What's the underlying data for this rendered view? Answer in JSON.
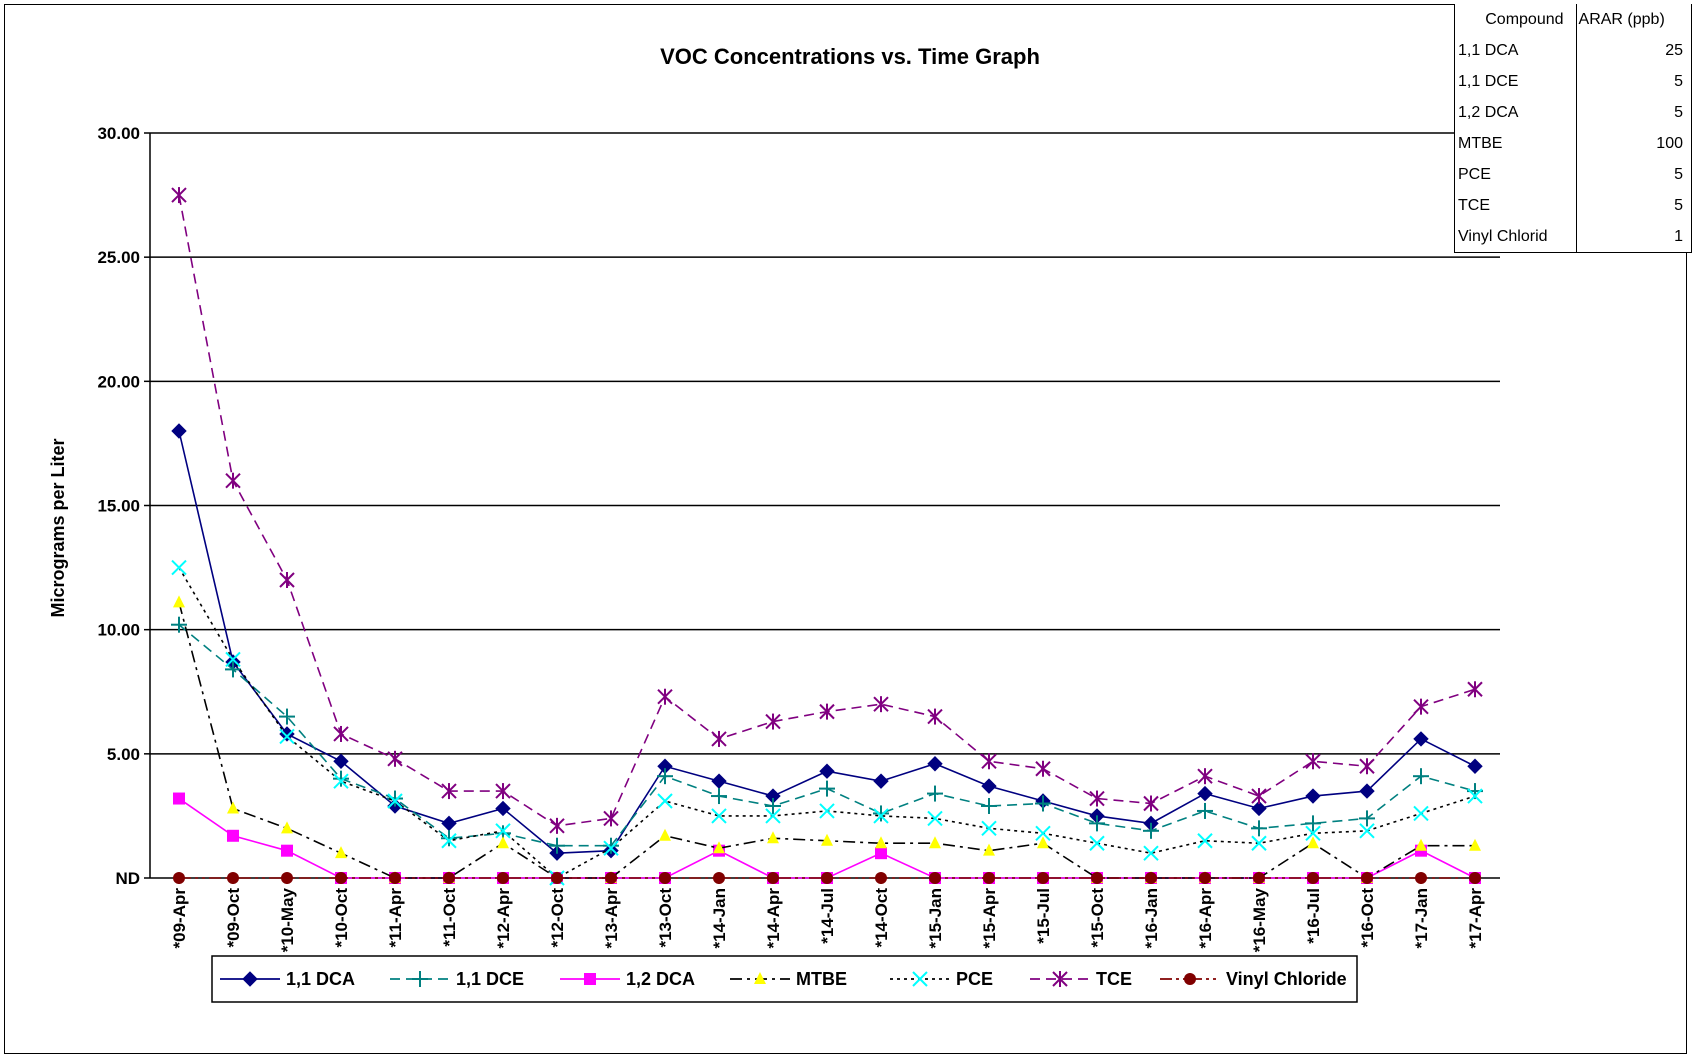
{
  "chart_data": {
    "type": "line",
    "title": "VOC Concentrations vs. Time Graph",
    "xlabel": "",
    "ylabel": "Micrograms per Liter",
    "ylim": [
      0,
      30
    ],
    "yticks": [
      {
        "value": 0,
        "label": "ND"
      },
      {
        "value": 5,
        "label": "5.00"
      },
      {
        "value": 10,
        "label": "10.00"
      },
      {
        "value": 15,
        "label": "15.00"
      },
      {
        "value": 20,
        "label": "20.00"
      },
      {
        "value": 25,
        "label": "25.00"
      },
      {
        "value": 30,
        "label": "30.00"
      }
    ],
    "grid": true,
    "legend_position": "bottom",
    "categories": [
      "*09-Apr",
      "*09-Oct",
      "*10-May",
      "*10-Oct",
      "*11-Apr",
      "*11-Oct",
      "*12-Apr",
      "*12-Oct",
      "*13-Apr",
      "*13-Oct",
      "*14-Jan",
      "*14-Apr",
      "*14-Jul",
      "*14-Oct",
      "*15-Jan",
      "*15-Apr",
      "*15-Jul",
      "*15-Oct",
      "*16-Jan",
      "*16-Apr",
      "*16-May",
      "*16-Jul",
      "*16-Oct",
      "*17-Jan",
      "*17-Apr"
    ],
    "series": [
      {
        "name": "1,1 DCA",
        "color": "#000080",
        "marker": "diamond",
        "dash": "solid",
        "values": [
          18.0,
          8.7,
          5.8,
          4.7,
          2.9,
          2.2,
          2.8,
          1.0,
          1.1,
          4.5,
          3.9,
          3.3,
          4.3,
          3.9,
          4.6,
          3.7,
          3.1,
          2.5,
          2.2,
          3.4,
          2.8,
          3.3,
          3.5,
          5.6,
          4.5
        ]
      },
      {
        "name": "1,1 DCE",
        "color": "#008080",
        "marker": "plus",
        "dash": "longdash",
        "values": [
          10.2,
          8.4,
          6.5,
          4.0,
          3.2,
          1.6,
          1.8,
          1.3,
          1.3,
          4.1,
          3.3,
          2.9,
          3.6,
          2.6,
          3.4,
          2.9,
          3.0,
          2.2,
          1.9,
          2.7,
          2.0,
          2.2,
          2.4,
          4.1,
          3.5
        ]
      },
      {
        "name": "1,2 DCA",
        "color": "#ff00ff",
        "marker": "square",
        "dash": "solid",
        "values": [
          3.2,
          1.7,
          1.1,
          0,
          0,
          0,
          0,
          0,
          0,
          0,
          1.1,
          0,
          0,
          1.0,
          0,
          0,
          0,
          0,
          0,
          0,
          0,
          0,
          0,
          1.1,
          0
        ]
      },
      {
        "name": "MTBE",
        "color": "#ffff00",
        "marker": "triangle",
        "dash": "dashdot",
        "values": [
          11.1,
          2.8,
          2.0,
          1.0,
          0,
          0,
          1.4,
          0,
          0,
          1.7,
          1.2,
          1.6,
          1.5,
          1.4,
          1.4,
          1.1,
          1.4,
          0,
          0,
          0,
          0,
          1.4,
          0,
          1.3,
          1.3
        ]
      },
      {
        "name": "PCE",
        "color": "#00ffff",
        "marker": "x",
        "dash": "dotted",
        "values": [
          12.5,
          8.8,
          5.7,
          3.9,
          3.1,
          1.5,
          1.9,
          0,
          1.2,
          3.1,
          2.5,
          2.5,
          2.7,
          2.5,
          2.4,
          2.0,
          1.8,
          1.4,
          1.0,
          1.5,
          1.4,
          1.8,
          1.9,
          2.6,
          3.3
        ]
      },
      {
        "name": "TCE",
        "color": "#800080",
        "marker": "star",
        "dash": "longdash",
        "values": [
          27.5,
          16.0,
          12.0,
          5.8,
          4.8,
          3.5,
          3.5,
          2.1,
          2.4,
          7.3,
          5.6,
          6.3,
          6.7,
          7.0,
          6.5,
          4.7,
          4.4,
          3.2,
          3.0,
          4.1,
          3.3,
          4.7,
          4.5,
          6.9,
          7.6
        ]
      },
      {
        "name": "Vinyl Chloride",
        "color": "#800000",
        "marker": "circle",
        "dash": "dashdotdot",
        "values": [
          0,
          0,
          0,
          0,
          0,
          0,
          0,
          0,
          0,
          0,
          0,
          0,
          0,
          0,
          0,
          0,
          0,
          0,
          0,
          0,
          0,
          0,
          0,
          0,
          0
        ]
      }
    ]
  },
  "table": {
    "header": [
      "Compound",
      "ARAR (ppb)"
    ],
    "rows": [
      [
        "1,1 DCA",
        "25"
      ],
      [
        "1,1 DCE",
        "5"
      ],
      [
        "1,2 DCA",
        "5"
      ],
      [
        "MTBE",
        "100"
      ],
      [
        "PCE",
        "5"
      ],
      [
        "TCE",
        "5"
      ],
      [
        "Vinyl Chlorid",
        "1"
      ]
    ]
  }
}
